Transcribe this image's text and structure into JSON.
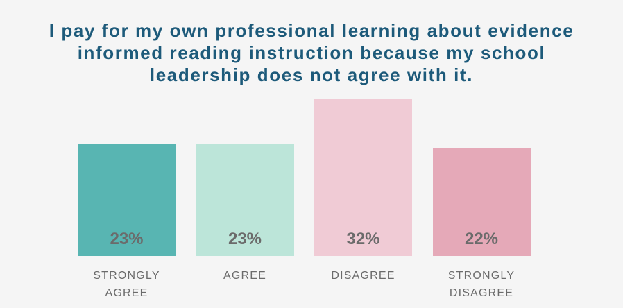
{
  "chart_data": {
    "type": "bar",
    "title": "I pay for my own professional learning about evidence informed reading instruction because my school leadership does not agree with it.",
    "categories": [
      "STRONGLY AGREE",
      "AGREE",
      "DISAGREE",
      "STRONGLY DISAGREE"
    ],
    "values": [
      23,
      23,
      32,
      22
    ],
    "value_labels": [
      "23%",
      "23%",
      "32%",
      "22%"
    ],
    "colors": [
      "#58b5b2",
      "#bce5d9",
      "#f0cbd5",
      "#e5a9b8"
    ]
  }
}
